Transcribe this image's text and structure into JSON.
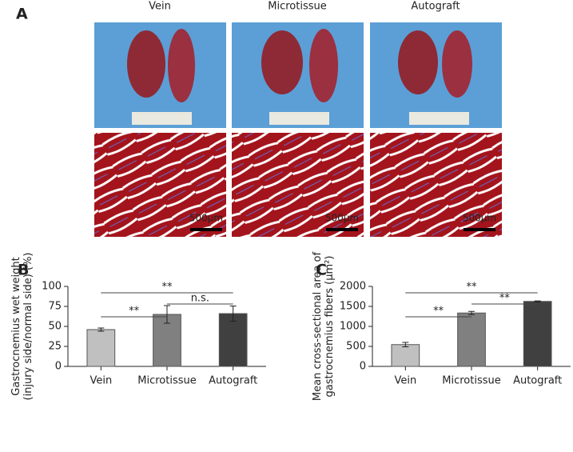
{
  "panel_a": {
    "label": "A",
    "columns": [
      "Vein",
      "Microtissue",
      "Autograft"
    ],
    "scale_bars": [
      "500μm",
      "500μm",
      "500μm"
    ]
  },
  "chart_data": [
    {
      "type": "bar",
      "label": "B",
      "y_label": [
        "Gastrocnemius wet weight",
        "(injury side/normal side) (%)"
      ],
      "categories": [
        "Vein",
        "Microtissue",
        "Autograft"
      ],
      "values": [
        46,
        65,
        66
      ],
      "errors": [
        2,
        11,
        9.5
      ],
      "colors": [
        "#c0c0c0",
        "#808080",
        "#404040"
      ],
      "ylim": [
        0,
        100
      ],
      "yticks": [
        0,
        25,
        50,
        75,
        100
      ],
      "annotations": [
        {
          "text": "**",
          "between": [
            "Vein",
            "Microtissue"
          ]
        },
        {
          "text": "n.s.",
          "between": [
            "Microtissue",
            "Autograft"
          ]
        },
        {
          "text": "**",
          "between": [
            "Vein",
            "Autograft"
          ]
        }
      ]
    },
    {
      "type": "bar",
      "label": "C",
      "y_label": [
        "Mean cross-sectional area of",
        "gastrocnemius fibers (μm²)"
      ],
      "categories": [
        "Vein",
        "Microtissue",
        "Autograft"
      ],
      "values": [
        545,
        1335,
        1625
      ],
      "errors": [
        55,
        40,
        12
      ],
      "colors": [
        "#c0c0c0",
        "#808080",
        "#404040"
      ],
      "ylim": [
        0,
        2000
      ],
      "yticks": [
        0,
        500,
        1000,
        1500,
        2000
      ],
      "annotations": [
        {
          "text": "**",
          "between": [
            "Vein",
            "Microtissue"
          ]
        },
        {
          "text": "**",
          "between": [
            "Microtissue",
            "Autograft"
          ]
        },
        {
          "text": "**",
          "between": [
            "Vein",
            "Autograft"
          ]
        }
      ]
    }
  ]
}
